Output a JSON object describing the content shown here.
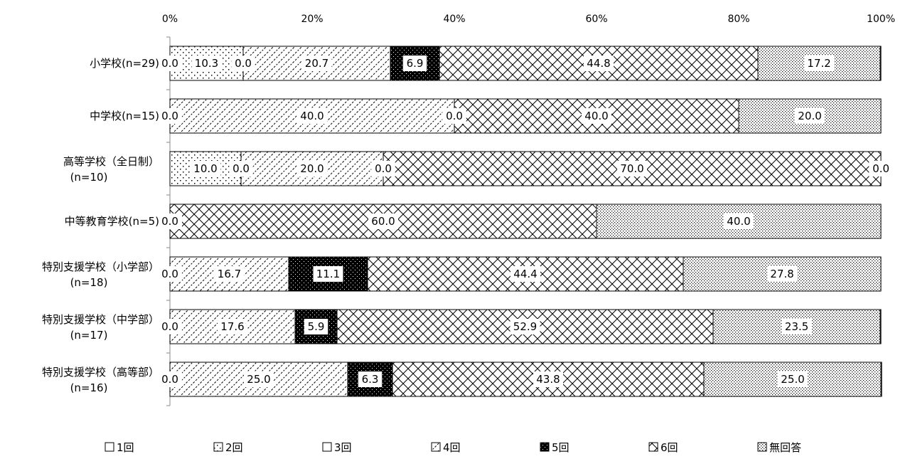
{
  "chart_data": {
    "type": "bar",
    "orientation": "horizontal",
    "stacked": "percent",
    "xlim": [
      0,
      100
    ],
    "x_ticks": [
      "0%",
      "20%",
      "40%",
      "60%",
      "80%",
      "100%"
    ],
    "categories": [
      [
        "小学校(n=29)"
      ],
      [
        "中学校(n=15)"
      ],
      [
        "高等学校（全日制）",
        "(n=10)"
      ],
      [
        "中等教育学校(n=5)"
      ],
      [
        "特別支援学校（小学部）",
        "(n=18)"
      ],
      [
        "特別支援学校（中学部）",
        "(n=17)"
      ],
      [
        "特別支援学校（高等部）",
        "(n=16)"
      ]
    ],
    "series": [
      {
        "name": "1回",
        "pattern": "empty",
        "values": [
          0.0,
          0.0,
          0.0,
          0.0,
          0.0,
          0.0,
          0.0
        ],
        "labels": [
          "0.0",
          "0.0",
          "",
          "0.0",
          "0.0",
          "0.0",
          "0.0"
        ]
      },
      {
        "name": "2回",
        "pattern": "sparse-dots",
        "values": [
          10.3,
          0.0,
          10.0,
          0.0,
          0.0,
          0.0,
          0.0
        ],
        "labels": [
          "10.3",
          "0.0",
          "10.0",
          "0.0",
          "0.0",
          "0.0",
          "0.0"
        ]
      },
      {
        "name": "3回",
        "pattern": "empty",
        "values": [
          0.0,
          0.0,
          0.0,
          0.0,
          0.0,
          0.0,
          0.0
        ],
        "labels": [
          "0.0",
          "0.0",
          "0.0",
          "0.0",
          "0.0",
          "0.0",
          "0.0"
        ]
      },
      {
        "name": "4回",
        "pattern": "diagonal",
        "values": [
          20.7,
          40.0,
          20.0,
          0.0,
          16.7,
          17.6,
          25.0
        ],
        "labels": [
          "20.7",
          "40.0",
          "20.0",
          "0.0",
          "16.7",
          "17.6",
          "25.0"
        ]
      },
      {
        "name": "5回",
        "pattern": "dense-black",
        "values": [
          6.9,
          0.0,
          0.0,
          0.0,
          11.1,
          5.9,
          6.3
        ],
        "labels": [
          "6.9",
          "0.0",
          "0.0",
          "0.0",
          "11.1",
          "5.9",
          "6.3"
        ]
      },
      {
        "name": "6回",
        "pattern": "crosshatch",
        "values": [
          44.8,
          40.0,
          70.0,
          60.0,
          44.4,
          52.9,
          43.8
        ],
        "labels": [
          "44.8",
          "40.0",
          "70.0",
          "60.0",
          "44.4",
          "52.9",
          "43.8"
        ]
      },
      {
        "name": "無回答",
        "pattern": "fine-dots",
        "values": [
          17.2,
          20.0,
          0.0,
          40.0,
          27.8,
          23.5,
          25.0
        ],
        "labels": [
          "17.2",
          "20.0",
          "0.0",
          "40.0",
          "27.8",
          "23.5",
          "25.0"
        ]
      }
    ],
    "legend_position": "bottom",
    "grid": false
  }
}
